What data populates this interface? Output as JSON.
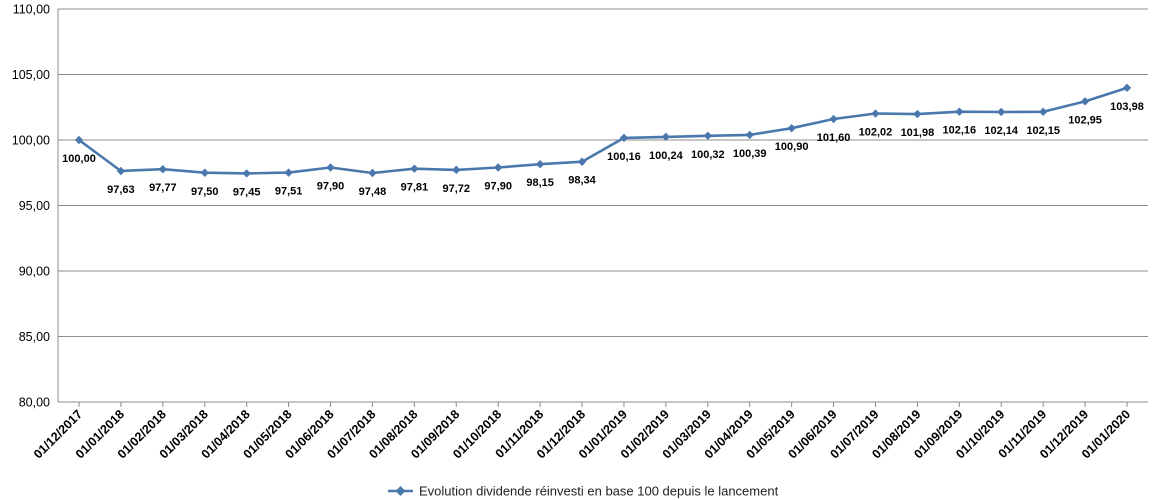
{
  "chart_data": {
    "type": "line",
    "title": "",
    "xlabel": "",
    "ylabel": "",
    "ylim": [
      80,
      110
    ],
    "yticks": [
      "80,00",
      "85,00",
      "90,00",
      "95,00",
      "100,00",
      "105,00",
      "110,00"
    ],
    "grid": true,
    "legend_position": "bottom",
    "categories": [
      "01/12/2017",
      "01/01/2018",
      "01/02/2018",
      "01/03/2018",
      "01/04/2018",
      "01/05/2018",
      "01/06/2018",
      "01/07/2018",
      "01/08/2018",
      "01/09/2018",
      "01/10/2018",
      "01/11/2018",
      "01/12/2018",
      "01/01/2019",
      "01/02/2019",
      "01/03/2019",
      "01/04/2019",
      "01/05/2019",
      "01/06/2019",
      "01/07/2019",
      "01/08/2019",
      "01/09/2019",
      "01/10/2019",
      "01/11/2019",
      "01/12/2019",
      "01/01/2020"
    ],
    "series": [
      {
        "name": "Evolution dividende réinvesti en base 100 depuis le lancement",
        "color": "#4a78ad",
        "values": [
          100.0,
          97.63,
          97.77,
          97.5,
          97.45,
          97.51,
          97.9,
          97.48,
          97.81,
          97.72,
          97.9,
          98.15,
          98.34,
          100.16,
          100.24,
          100.32,
          100.39,
          100.9,
          101.6,
          102.02,
          101.98,
          102.16,
          102.14,
          102.15,
          102.95,
          103.98
        ],
        "labels": [
          "100,00",
          "97,63",
          "97,77",
          "97,50",
          "97,45",
          "97,51",
          "97,90",
          "97,48",
          "97,81",
          "97,72",
          "97,90",
          "98,15",
          "98,34",
          "100,16",
          "100,24",
          "100,32",
          "100,39",
          "100,90",
          "101,60",
          "102,02",
          "101,98",
          "102,16",
          "102,14",
          "102,15",
          "102,95",
          "103,98"
        ]
      }
    ]
  }
}
